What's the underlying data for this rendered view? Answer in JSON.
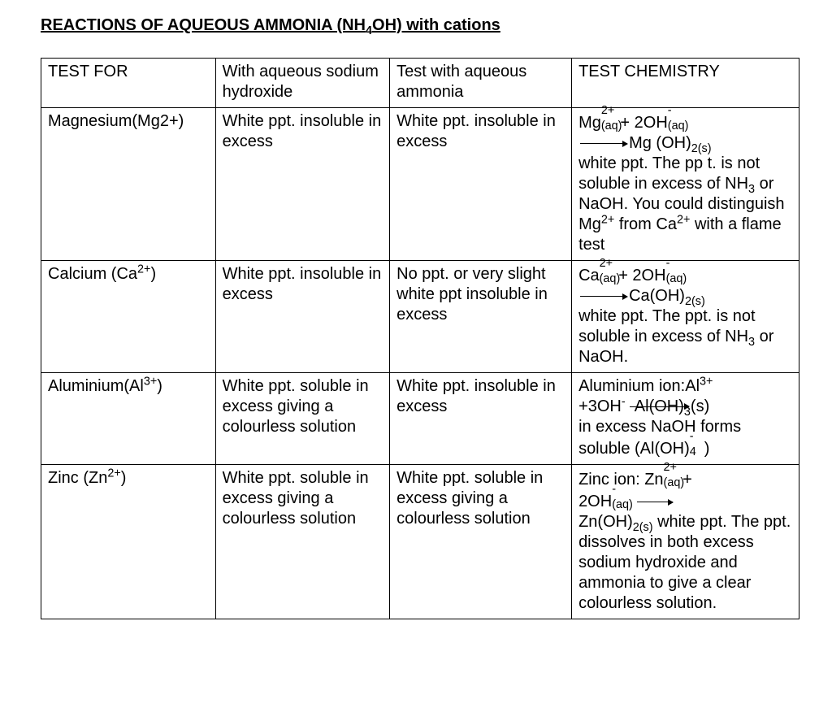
{
  "page": {
    "background_color": "#ffffff",
    "text_color": "#000000",
    "font_family": "Arial",
    "title_fontsize_pt": 15,
    "body_fontsize_pt": 15
  },
  "title_parts": {
    "a": "REACTIONS OF AQUEOUS AMMONIA (NH",
    "b": "4",
    "c": "OH) with cations"
  },
  "table": {
    "border_color": "#000000",
    "column_widths_pct": [
      23,
      23,
      24,
      30
    ],
    "headers": {
      "c1": "TEST FOR",
      "c2": "With aqueous sodium hydroxide",
      "c3": "Test with aqueous ammonia",
      "c4": "TEST CHEMISTRY"
    },
    "rows": {
      "mg": {
        "c1": "Magnesium(Mg2+)",
        "c2": "White ppt. insoluble in excess",
        "c3": "White ppt. insoluble in excess",
        "chem": {
          "ion": "Mg",
          "ion_charge": "2+",
          "aq": "(aq)",
          "plus": " + 2OH",
          "oh_charge": "-",
          "prod": "Mg (OH)",
          "prod_sub": "2(s)",
          "rest1": "white ppt. The pp t. is not soluble in excess of NH",
          "nh3_sub": "3",
          "rest2": " or NaOH. You could distinguish Mg",
          "mg_charge": "2+",
          "rest3": " from Ca",
          "ca_charge": "2+",
          "rest4": " with a flame test"
        }
      },
      "ca": {
        "c1_a": "Calcium (Ca",
        "c1_b": "2+",
        "c1_c": ")",
        "c2": "White ppt. insoluble in excess",
        "c3": "No ppt. or very slight white ppt insoluble in excess",
        "chem": {
          "ion": "Ca",
          "ion_charge": "2+",
          "aq": "(aq)",
          "plus": " + 2OH",
          "oh_charge": "-",
          "prod": "Ca(OH)",
          "prod_sub": "2(s)",
          "rest1": "white ppt. The ppt. is not soluble in excess of NH",
          "nh3_sub": "3",
          "rest2": " or NaOH."
        }
      },
      "al": {
        "c1_a": "Aluminium(Al",
        "c1_b": "3+",
        "c1_c": ")",
        "c2": "White ppt. soluble in excess giving a colourless solution",
        "c3": "White ppt. insoluble in excess",
        "chem": {
          "line1a": "Aluminium ion:Al",
          "line1b": "3+",
          "plus": "+3OH",
          "oh_charge": "-",
          "prod_strike": "Al(OH)",
          "prod_sub": "3",
          "prod_tail": "(s)",
          "rest1": "in excess NaOH forms soluble (Al(OH)",
          "aloh_sub": "4",
          "aloh_sup": "-",
          "rest2": ")"
        }
      },
      "zn": {
        "c1_a": "Zinc (Zn",
        "c1_b": "2+",
        "c1_c": ")",
        "c2": "White ppt. soluble in excess giving a colourless solution",
        "c3": "White ppt. soluble in excess giving a colourless solution",
        "chem": {
          "line1a": "Zinc ion: Zn",
          "line1b": "2+",
          "aq": "(aq)",
          "plus": " + ",
          "oh": "2OH",
          "oh_charge": "-",
          "prod": "Zn(OH)",
          "prod_sub": "2(s)",
          "rest": " white ppt. The ppt. dissolves in both excess sodium hydroxide and ammonia to give a clear colourless solution."
        }
      }
    }
  }
}
